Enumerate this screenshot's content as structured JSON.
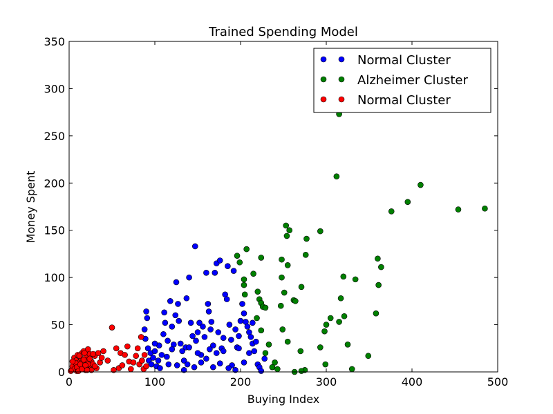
{
  "chart_data": {
    "type": "scatter",
    "title": "Trained Spending Model",
    "xlabel": "Buying Index",
    "ylabel": "Money Spent",
    "xlim": [
      0,
      500
    ],
    "ylim": [
      0,
      350
    ],
    "xticks": [
      "0",
      "100",
      "200",
      "300",
      "400",
      "500"
    ],
    "yticks": [
      "0",
      "50",
      "100",
      "150",
      "200",
      "250",
      "300",
      "350"
    ],
    "grid": false,
    "legend_position": "top-right",
    "series": [
      {
        "name": "Normal Cluster",
        "color": "#0000ff",
        "points": [
          [
            90,
            64
          ],
          [
            91,
            57
          ],
          [
            88,
            45
          ],
          [
            89,
            35
          ],
          [
            92,
            25
          ],
          [
            95,
            20
          ],
          [
            93,
            12
          ],
          [
            96,
            8
          ],
          [
            98,
            15
          ],
          [
            100,
            22
          ],
          [
            102,
            6
          ],
          [
            105,
            28
          ],
          [
            108,
            18
          ],
          [
            110,
            40
          ],
          [
            112,
            52
          ],
          [
            111,
            63
          ],
          [
            115,
            33
          ],
          [
            118,
            75
          ],
          [
            120,
            48
          ],
          [
            122,
            29
          ],
          [
            124,
            60
          ],
          [
            125,
            95
          ],
          [
            127,
            72
          ],
          [
            128,
            54
          ],
          [
            130,
            30
          ],
          [
            132,
            22
          ],
          [
            134,
            12
          ],
          [
            136,
            26
          ],
          [
            137,
            78
          ],
          [
            140,
            100
          ],
          [
            142,
            52
          ],
          [
            144,
            38
          ],
          [
            147,
            133
          ],
          [
            148,
            33
          ],
          [
            150,
            42
          ],
          [
            152,
            52
          ],
          [
            154,
            18
          ],
          [
            156,
            48
          ],
          [
            158,
            37
          ],
          [
            160,
            105
          ],
          [
            162,
            72
          ],
          [
            163,
            64
          ],
          [
            165,
            45
          ],
          [
            166,
            53
          ],
          [
            168,
            28
          ],
          [
            170,
            105
          ],
          [
            172,
            115
          ],
          [
            174,
            42
          ],
          [
            176,
            118
          ],
          [
            178,
            25
          ],
          [
            180,
            36
          ],
          [
            182,
            82
          ],
          [
            184,
            77
          ],
          [
            185,
            112
          ],
          [
            187,
            50
          ],
          [
            189,
            34
          ],
          [
            190,
            7
          ],
          [
            192,
            107
          ],
          [
            194,
            45
          ],
          [
            196,
            26
          ],
          [
            198,
            38
          ],
          [
            200,
            54
          ],
          [
            202,
            72
          ],
          [
            204,
            62
          ],
          [
            206,
            53
          ],
          [
            208,
            48
          ],
          [
            210,
            42
          ],
          [
            212,
            37
          ],
          [
            214,
            30
          ],
          [
            216,
            22
          ],
          [
            218,
            32
          ],
          [
            220,
            8
          ],
          [
            222,
            5
          ],
          [
            224,
            1
          ],
          [
            100,
            30
          ],
          [
            104,
            12
          ],
          [
            106,
            4
          ],
          [
            114,
            16
          ],
          [
            116,
            8
          ],
          [
            126,
            7
          ],
          [
            134,
            2
          ],
          [
            138,
            8
          ],
          [
            146,
            5
          ],
          [
            150,
            20
          ],
          [
            154,
            10
          ],
          [
            160,
            14
          ],
          [
            164,
            24
          ],
          [
            168,
            5
          ],
          [
            172,
            20
          ],
          [
            176,
            9
          ],
          [
            180,
            22
          ],
          [
            186,
            4
          ],
          [
            194,
            2
          ],
          [
            198,
            25
          ],
          [
            204,
            10
          ],
          [
            210,
            20
          ],
          [
            228,
            14
          ],
          [
            214,
            52
          ],
          [
            120,
            24
          ],
          [
            140,
            26
          ]
        ]
      },
      {
        "name": "Alzheimer Cluster",
        "color": "#008000",
        "points": [
          [
            315,
            273
          ],
          [
            312,
            207
          ],
          [
            410,
            198
          ],
          [
            395,
            180
          ],
          [
            454,
            172
          ],
          [
            485,
            173
          ],
          [
            376,
            170
          ],
          [
            253,
            155
          ],
          [
            257,
            150
          ],
          [
            254,
            144
          ],
          [
            277,
            141
          ],
          [
            293,
            149
          ],
          [
            196,
            123
          ],
          [
            199,
            116
          ],
          [
            207,
            130
          ],
          [
            224,
            121
          ],
          [
            248,
            119
          ],
          [
            255,
            113
          ],
          [
            276,
            124
          ],
          [
            262,
            76
          ],
          [
            264,
            75
          ],
          [
            320,
            101
          ],
          [
            334,
            98
          ],
          [
            360,
            120
          ],
          [
            361,
            92
          ],
          [
            364,
            111
          ],
          [
            358,
            62
          ],
          [
            317,
            78
          ],
          [
            271,
            90
          ],
          [
            248,
            100
          ],
          [
            251,
            84
          ],
          [
            220,
            85
          ],
          [
            204,
            98
          ],
          [
            204,
            92
          ],
          [
            205,
            82
          ],
          [
            215,
            104
          ],
          [
            222,
            77
          ],
          [
            224,
            73
          ],
          [
            226,
            69
          ],
          [
            229,
            68
          ],
          [
            247,
            70
          ],
          [
            219,
            57
          ],
          [
            224,
            44
          ],
          [
            229,
            20
          ],
          [
            233,
            29
          ],
          [
            249,
            45
          ],
          [
            255,
            32
          ],
          [
            270,
            22
          ],
          [
            298,
            43
          ],
          [
            300,
            50
          ],
          [
            305,
            57
          ],
          [
            315,
            53
          ],
          [
            321,
            59
          ],
          [
            325,
            29
          ],
          [
            349,
            17
          ],
          [
            293,
            26
          ],
          [
            299,
            8
          ],
          [
            330,
            3
          ],
          [
            275,
            2
          ],
          [
            271,
            1
          ],
          [
            263,
            0
          ],
          [
            240,
            10
          ],
          [
            237,
            5
          ],
          [
            243,
            3
          ]
        ]
      },
      {
        "name": "Normal Cluster",
        "color": "#ff0000",
        "points": [
          [
            3,
            2
          ],
          [
            5,
            8
          ],
          [
            6,
            15
          ],
          [
            7,
            4
          ],
          [
            8,
            12
          ],
          [
            9,
            1
          ],
          [
            10,
            18
          ],
          [
            11,
            7
          ],
          [
            12,
            10
          ],
          [
            13,
            3
          ],
          [
            14,
            14
          ],
          [
            15,
            20
          ],
          [
            16,
            6
          ],
          [
            17,
            22
          ],
          [
            18,
            9
          ],
          [
            19,
            2
          ],
          [
            20,
            16
          ],
          [
            21,
            12
          ],
          [
            22,
            24
          ],
          [
            23,
            5
          ],
          [
            24,
            19
          ],
          [
            26,
            11
          ],
          [
            28,
            8
          ],
          [
            30,
            17
          ],
          [
            32,
            4
          ],
          [
            34,
            20
          ],
          [
            36,
            10
          ],
          [
            38,
            15
          ],
          [
            40,
            22
          ],
          [
            45,
            12
          ],
          [
            50,
            47
          ],
          [
            52,
            2
          ],
          [
            55,
            25
          ],
          [
            58,
            4
          ],
          [
            60,
            20
          ],
          [
            62,
            7
          ],
          [
            65,
            18
          ],
          [
            68,
            27
          ],
          [
            70,
            11
          ],
          [
            72,
            3
          ],
          [
            75,
            10
          ],
          [
            78,
            17
          ],
          [
            80,
            25
          ],
          [
            82,
            8
          ],
          [
            84,
            37
          ],
          [
            85,
            12
          ],
          [
            87,
            3
          ],
          [
            88,
            18
          ],
          [
            90,
            6
          ],
          [
            4,
            6
          ],
          [
            6,
            3
          ],
          [
            8,
            9
          ],
          [
            10,
            2
          ],
          [
            12,
            17
          ],
          [
            14,
            5
          ],
          [
            16,
            11
          ],
          [
            18,
            20
          ],
          [
            20,
            4
          ],
          [
            22,
            8
          ],
          [
            24,
            14
          ],
          [
            26,
            2
          ],
          [
            28,
            19
          ],
          [
            30,
            6
          ],
          [
            2,
            1
          ],
          [
            4,
            11
          ],
          [
            9,
            5
          ],
          [
            11,
            1
          ],
          [
            13,
            8
          ],
          [
            15,
            3
          ],
          [
            17,
            13
          ],
          [
            19,
            7
          ],
          [
            21,
            2
          ]
        ]
      }
    ]
  }
}
